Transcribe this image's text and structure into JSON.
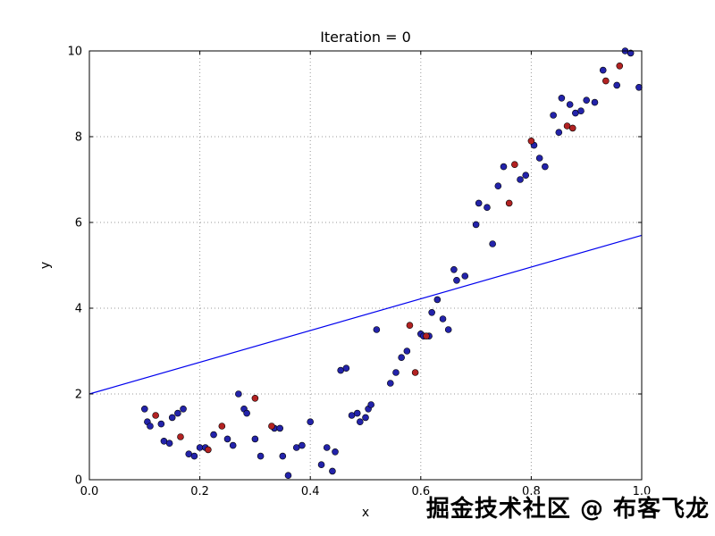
{
  "title": "Iteration = 0",
  "watermark": "掘金技术社区 @ 布客飞龙",
  "chart_data": {
    "type": "scatter",
    "title": "Iteration = 0",
    "xlabel": "x",
    "ylabel": "y",
    "xlim": [
      0.0,
      1.0
    ],
    "ylim": [
      0,
      10
    ],
    "xticks": [
      0.0,
      0.2,
      0.4,
      0.6,
      0.8,
      1.0
    ],
    "xtick_labels": [
      "0.0",
      "0.2",
      "0.4",
      "0.6",
      "0.8",
      "1.0"
    ],
    "yticks": [
      0,
      2,
      4,
      6,
      8,
      10
    ],
    "ytick_labels": [
      "0",
      "2",
      "4",
      "6",
      "8",
      "10"
    ],
    "grid": true,
    "grid_style": "dotted",
    "colors": {
      "blue_points": "#2323aa",
      "red_points": "#b22222",
      "line": "#0000ee",
      "edge": "#000000",
      "grid": "#999999"
    },
    "series": [
      {
        "name": "blue-points",
        "type": "scatter",
        "color": "#2323aa",
        "points": [
          [
            0.1,
            1.65
          ],
          [
            0.105,
            1.35
          ],
          [
            0.11,
            1.25
          ],
          [
            0.13,
            1.3
          ],
          [
            0.135,
            0.9
          ],
          [
            0.145,
            0.85
          ],
          [
            0.15,
            1.45
          ],
          [
            0.16,
            1.55
          ],
          [
            0.17,
            1.65
          ],
          [
            0.18,
            0.6
          ],
          [
            0.19,
            0.55
          ],
          [
            0.2,
            0.75
          ],
          [
            0.21,
            0.75
          ],
          [
            0.225,
            1.05
          ],
          [
            0.25,
            0.95
          ],
          [
            0.26,
            0.8
          ],
          [
            0.27,
            2.0
          ],
          [
            0.28,
            1.65
          ],
          [
            0.285,
            1.55
          ],
          [
            0.3,
            0.95
          ],
          [
            0.31,
            0.55
          ],
          [
            0.335,
            1.2
          ],
          [
            0.345,
            1.2
          ],
          [
            0.35,
            0.55
          ],
          [
            0.36,
            0.1
          ],
          [
            0.375,
            0.75
          ],
          [
            0.385,
            0.8
          ],
          [
            0.4,
            1.35
          ],
          [
            0.42,
            0.35
          ],
          [
            0.43,
            0.75
          ],
          [
            0.44,
            0.2
          ],
          [
            0.445,
            0.65
          ],
          [
            0.455,
            2.55
          ],
          [
            0.465,
            2.6
          ],
          [
            0.475,
            1.5
          ],
          [
            0.485,
            1.55
          ],
          [
            0.49,
            1.35
          ],
          [
            0.5,
            1.45
          ],
          [
            0.505,
            1.65
          ],
          [
            0.51,
            1.75
          ],
          [
            0.52,
            3.5
          ],
          [
            0.545,
            2.25
          ],
          [
            0.555,
            2.5
          ],
          [
            0.565,
            2.85
          ],
          [
            0.575,
            3.0
          ],
          [
            0.6,
            3.4
          ],
          [
            0.605,
            3.35
          ],
          [
            0.615,
            3.35
          ],
          [
            0.62,
            3.9
          ],
          [
            0.63,
            4.2
          ],
          [
            0.64,
            3.75
          ],
          [
            0.65,
            3.5
          ],
          [
            0.66,
            4.9
          ],
          [
            0.665,
            4.65
          ],
          [
            0.68,
            4.75
          ],
          [
            0.7,
            5.95
          ],
          [
            0.705,
            6.45
          ],
          [
            0.72,
            6.35
          ],
          [
            0.73,
            5.5
          ],
          [
            0.74,
            6.85
          ],
          [
            0.75,
            7.3
          ],
          [
            0.78,
            7.0
          ],
          [
            0.79,
            7.1
          ],
          [
            0.805,
            7.8
          ],
          [
            0.815,
            7.5
          ],
          [
            0.825,
            7.3
          ],
          [
            0.84,
            8.5
          ],
          [
            0.85,
            8.1
          ],
          [
            0.855,
            8.9
          ],
          [
            0.87,
            8.75
          ],
          [
            0.88,
            8.55
          ],
          [
            0.89,
            8.6
          ],
          [
            0.9,
            8.85
          ],
          [
            0.915,
            8.8
          ],
          [
            0.93,
            9.55
          ],
          [
            0.955,
            9.2
          ],
          [
            0.97,
            10.0
          ],
          [
            0.98,
            9.95
          ],
          [
            0.995,
            9.15
          ]
        ]
      },
      {
        "name": "red-points",
        "type": "scatter",
        "color": "#b22222",
        "points": [
          [
            0.12,
            1.5
          ],
          [
            0.165,
            1.0
          ],
          [
            0.215,
            0.7
          ],
          [
            0.24,
            1.25
          ],
          [
            0.3,
            1.9
          ],
          [
            0.33,
            1.25
          ],
          [
            0.58,
            3.6
          ],
          [
            0.59,
            2.5
          ],
          [
            0.61,
            3.35
          ],
          [
            0.76,
            6.45
          ],
          [
            0.77,
            7.35
          ],
          [
            0.8,
            7.9
          ],
          [
            0.865,
            8.25
          ],
          [
            0.875,
            8.2
          ],
          [
            0.935,
            9.3
          ],
          [
            0.96,
            9.65
          ]
        ]
      },
      {
        "name": "fit-line",
        "type": "line",
        "color": "#0000ee",
        "points": [
          [
            0.0,
            2.0
          ],
          [
            1.0,
            5.7
          ]
        ]
      }
    ]
  }
}
